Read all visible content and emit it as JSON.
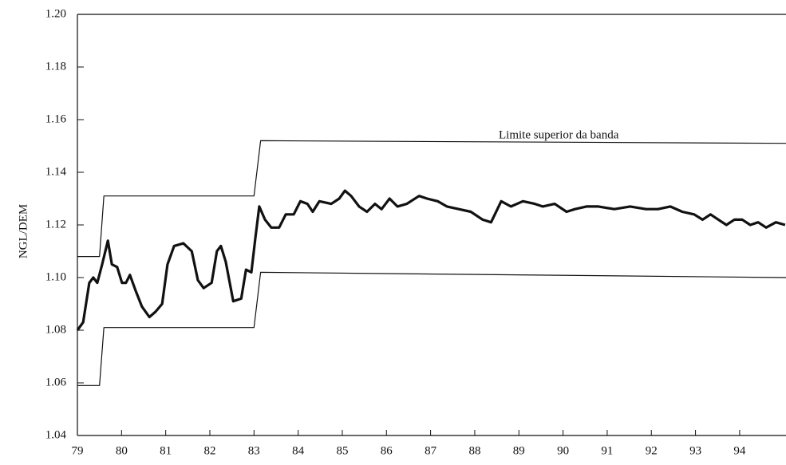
{
  "chart_data": {
    "type": "line",
    "y_label": "NGL/DEM",
    "annotation": "Limite superior da banda",
    "xlim": [
      79,
      95.05
    ],
    "ylim": [
      1.04,
      1.2
    ],
    "xticks": [
      79,
      80,
      81,
      82,
      83,
      84,
      85,
      86,
      87,
      88,
      89,
      90,
      91,
      92,
      93,
      94
    ],
    "yticks": [
      1.04,
      1.06,
      1.08,
      {
        "value": 1.1,
        "label": "1.10"
      },
      1.12,
      1.14,
      1.16,
      1.18,
      {
        "value": 1.2,
        "label": "1.20"
      }
    ],
    "series": [
      {
        "color": "#111111",
        "width": 1.2,
        "x": [
          79,
          79.5,
          79.6,
          83.0,
          83.15,
          95.05
        ],
        "values": [
          1.108,
          1.108,
          1.131,
          1.131,
          1.152,
          1.151
        ]
      },
      {
        "color": "#111111",
        "width": 1.2,
        "x": [
          79,
          79.5,
          79.6,
          83.0,
          83.15,
          95.05
        ],
        "values": [
          1.059,
          1.059,
          1.081,
          1.081,
          1.102,
          1.1
        ]
      },
      {
        "color": "#111111",
        "width": 3.2,
        "x": [
          79.0,
          79.13,
          79.27,
          79.36,
          79.45,
          79.56,
          79.69,
          79.78,
          79.9,
          80.01,
          80.1,
          80.19,
          80.32,
          80.46,
          80.63,
          80.77,
          80.92,
          81.04,
          81.19,
          81.4,
          81.59,
          81.73,
          81.86,
          82.04,
          82.16,
          82.25,
          82.36,
          82.53,
          82.71,
          82.82,
          82.94,
          83.03,
          83.12,
          83.25,
          83.39,
          83.57,
          83.72,
          83.9,
          84.05,
          84.21,
          84.33,
          84.48,
          84.75,
          84.93,
          85.06,
          85.2,
          85.38,
          85.56,
          85.74,
          85.89,
          86.07,
          86.25,
          86.46,
          86.74,
          86.92,
          87.16,
          87.37,
          87.64,
          87.91,
          88.18,
          88.37,
          88.6,
          88.82,
          89.09,
          89.36,
          89.54,
          89.81,
          90.08,
          90.27,
          90.53,
          90.8,
          91.16,
          91.52,
          91.88,
          92.15,
          92.43,
          92.7,
          92.97,
          93.16,
          93.34,
          93.52,
          93.7,
          93.88,
          94.06,
          94.24,
          94.42,
          94.6,
          94.82,
          95.03
        ],
        "values": [
          1.08,
          1.083,
          1.098,
          1.1,
          1.098,
          1.105,
          1.114,
          1.105,
          1.104,
          1.098,
          1.098,
          1.101,
          1.095,
          1.089,
          1.085,
          1.087,
          1.09,
          1.105,
          1.112,
          1.113,
          1.11,
          1.099,
          1.096,
          1.098,
          1.11,
          1.112,
          1.106,
          1.091,
          1.092,
          1.103,
          1.102,
          1.115,
          1.127,
          1.122,
          1.119,
          1.119,
          1.124,
          1.124,
          1.129,
          1.128,
          1.125,
          1.129,
          1.128,
          1.13,
          1.133,
          1.131,
          1.127,
          1.125,
          1.128,
          1.126,
          1.13,
          1.127,
          1.128,
          1.131,
          1.13,
          1.129,
          1.127,
          1.126,
          1.125,
          1.122,
          1.121,
          1.129,
          1.127,
          1.129,
          1.128,
          1.127,
          1.128,
          1.125,
          1.126,
          1.127,
          1.127,
          1.126,
          1.127,
          1.126,
          1.126,
          1.127,
          1.125,
          1.124,
          1.122,
          1.124,
          1.122,
          1.12,
          1.122,
          1.122,
          1.12,
          1.121,
          1.119,
          1.121,
          1.12
        ]
      }
    ]
  }
}
